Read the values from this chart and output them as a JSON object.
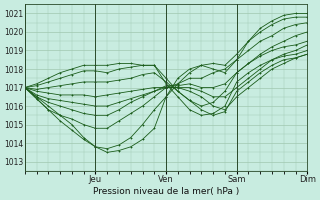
{
  "bg_color": "#c8ece0",
  "grid_color": "#a0c8b0",
  "line_color": "#1a5c1a",
  "title": "Pression niveau de la mer( hPa )",
  "ylabel_ticks": [
    1013,
    1014,
    1015,
    1016,
    1017,
    1018,
    1019,
    1020,
    1021
  ],
  "xlabels": [
    "Jeu",
    "Ven",
    "Sam",
    "Dim"
  ],
  "ylim": [
    1012.5,
    1021.5
  ],
  "xlim": [
    0,
    96
  ],
  "day_lines": [
    24,
    48,
    72
  ],
  "lines": [
    [
      0,
      1017.0,
      4,
      1016.5,
      8,
      1016.0,
      12,
      1015.5,
      16,
      1015.0,
      20,
      1014.3,
      24,
      1013.8,
      28,
      1013.5,
      32,
      1013.6,
      36,
      1013.8,
      40,
      1014.2,
      44,
      1014.8,
      48,
      1016.5,
      52,
      1017.5,
      56,
      1018.0,
      60,
      1018.2,
      64,
      1018.0,
      68,
      1017.8,
      72,
      1018.5,
      76,
      1019.5,
      80,
      1020.2,
      84,
      1020.6,
      88,
      1020.9,
      92,
      1021.0,
      96,
      1021.0
    ],
    [
      0,
      1017.0,
      4,
      1016.4,
      8,
      1015.8,
      12,
      1015.2,
      16,
      1014.7,
      20,
      1014.2,
      24,
      1013.8,
      28,
      1013.7,
      32,
      1013.9,
      36,
      1014.3,
      40,
      1015.0,
      44,
      1015.8,
      48,
      1016.5,
      52,
      1017.2,
      56,
      1017.8,
      60,
      1018.2,
      64,
      1018.3,
      68,
      1018.2,
      72,
      1018.8,
      76,
      1019.5,
      80,
      1020.0,
      84,
      1020.4,
      88,
      1020.7,
      92,
      1020.8,
      96,
      1020.8
    ],
    [
      0,
      1017.0,
      4,
      1016.4,
      8,
      1015.8,
      12,
      1015.5,
      16,
      1015.3,
      20,
      1015.0,
      24,
      1014.8,
      28,
      1014.8,
      32,
      1015.2,
      36,
      1015.6,
      40,
      1016.0,
      44,
      1016.5,
      48,
      1017.0,
      52,
      1017.2,
      56,
      1017.5,
      60,
      1017.5,
      64,
      1017.8,
      68,
      1018.0,
      72,
      1018.5,
      76,
      1019.0,
      80,
      1019.5,
      84,
      1019.8,
      88,
      1020.2,
      92,
      1020.4,
      96,
      1020.5
    ],
    [
      0,
      1017.0,
      4,
      1016.5,
      8,
      1016.2,
      12,
      1016.0,
      16,
      1015.8,
      20,
      1015.6,
      24,
      1015.5,
      28,
      1015.5,
      32,
      1015.8,
      36,
      1016.2,
      40,
      1016.5,
      44,
      1016.8,
      48,
      1017.1,
      52,
      1017.1,
      56,
      1017.2,
      60,
      1017.0,
      64,
      1017.0,
      68,
      1017.2,
      72,
      1017.8,
      76,
      1018.3,
      80,
      1018.8,
      84,
      1019.2,
      88,
      1019.5,
      92,
      1019.8,
      96,
      1020.0
    ],
    [
      0,
      1017.0,
      4,
      1016.6,
      8,
      1016.4,
      12,
      1016.3,
      16,
      1016.2,
      20,
      1016.1,
      24,
      1016.0,
      28,
      1016.0,
      32,
      1016.2,
      36,
      1016.4,
      40,
      1016.6,
      44,
      1016.8,
      48,
      1017.0,
      52,
      1017.0,
      56,
      1017.0,
      60,
      1016.8,
      64,
      1016.5,
      68,
      1016.5,
      72,
      1017.0,
      76,
      1017.5,
      80,
      1018.0,
      84,
      1018.5,
      88,
      1018.8,
      92,
      1019.0,
      96,
      1019.3
    ],
    [
      0,
      1017.0,
      4,
      1016.8,
      8,
      1016.7,
      12,
      1016.6,
      16,
      1016.6,
      20,
      1016.6,
      24,
      1016.5,
      28,
      1016.6,
      32,
      1016.7,
      36,
      1016.8,
      40,
      1016.9,
      44,
      1017.0,
      48,
      1017.0,
      52,
      1017.0,
      56,
      1016.8,
      60,
      1016.5,
      64,
      1016.0,
      68,
      1015.8,
      72,
      1016.5,
      76,
      1017.0,
      80,
      1017.5,
      84,
      1018.0,
      88,
      1018.3,
      92,
      1018.6,
      96,
      1018.8
    ],
    [
      0,
      1017.0,
      4,
      1016.9,
      8,
      1017.0,
      12,
      1017.1,
      16,
      1017.2,
      20,
      1017.3,
      24,
      1017.3,
      28,
      1017.3,
      32,
      1017.4,
      36,
      1017.5,
      40,
      1017.7,
      44,
      1017.8,
      48,
      1017.3,
      52,
      1016.8,
      56,
      1016.3,
      60,
      1015.8,
      64,
      1015.5,
      68,
      1015.7,
      72,
      1016.8,
      76,
      1017.3,
      80,
      1017.8,
      84,
      1018.2,
      88,
      1018.5,
      92,
      1018.6,
      96,
      1018.8
    ],
    [
      0,
      1017.0,
      4,
      1017.1,
      8,
      1017.3,
      12,
      1017.5,
      16,
      1017.7,
      20,
      1017.9,
      24,
      1017.9,
      28,
      1017.8,
      32,
      1018.0,
      36,
      1018.1,
      40,
      1018.2,
      44,
      1018.2,
      48,
      1017.2,
      52,
      1016.5,
      56,
      1015.8,
      60,
      1015.5,
      64,
      1015.6,
      68,
      1016.0,
      72,
      1017.3,
      76,
      1017.8,
      80,
      1018.2,
      84,
      1018.5,
      88,
      1018.7,
      92,
      1018.8,
      96,
      1019.0
    ],
    [
      0,
      1017.0,
      4,
      1017.2,
      8,
      1017.5,
      12,
      1017.8,
      16,
      1018.0,
      20,
      1018.2,
      24,
      1018.2,
      28,
      1018.2,
      32,
      1018.3,
      36,
      1018.3,
      40,
      1018.2,
      44,
      1018.2,
      48,
      1017.5,
      52,
      1016.8,
      56,
      1016.3,
      60,
      1016.0,
      64,
      1016.2,
      68,
      1016.8,
      72,
      1017.8,
      76,
      1018.3,
      80,
      1018.7,
      84,
      1019.0,
      88,
      1019.2,
      92,
      1019.3,
      96,
      1019.5
    ]
  ]
}
